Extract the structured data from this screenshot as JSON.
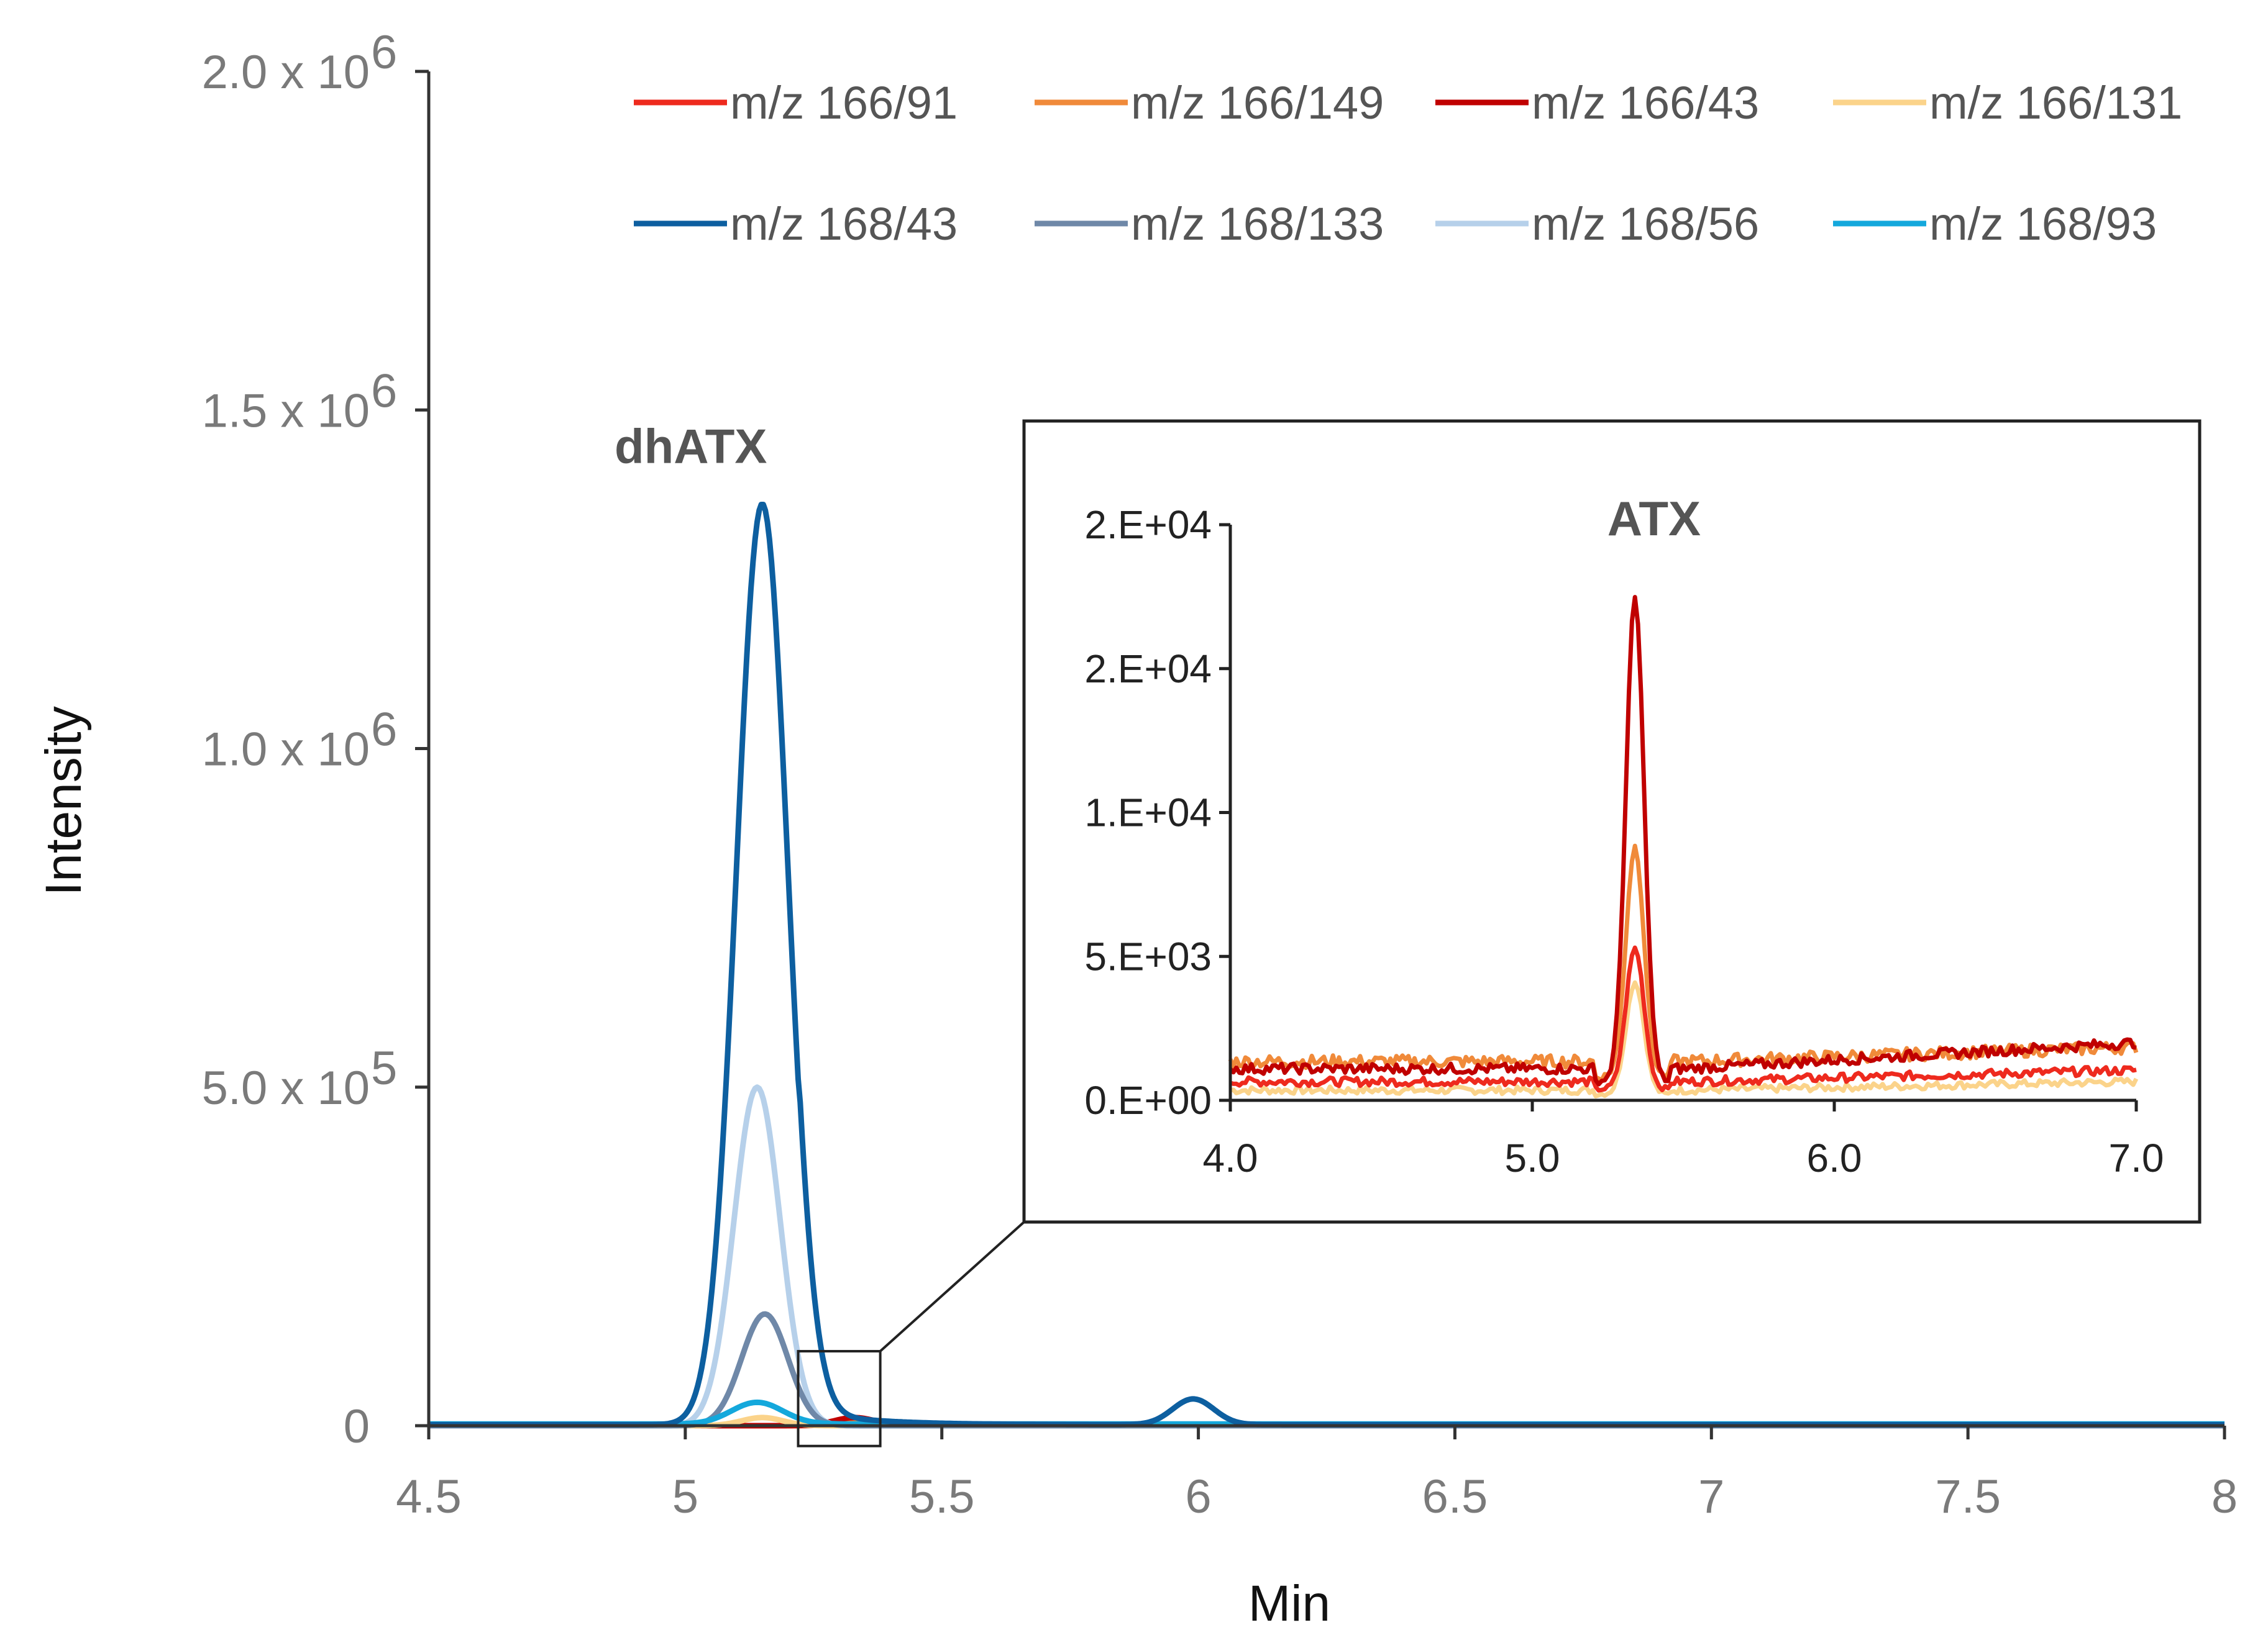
{
  "chart_data": {
    "type": "line",
    "xlabel": "Min",
    "ylabel": "Intensity",
    "xlim": [
      4.5,
      8
    ],
    "ylim": [
      0,
      2000000
    ],
    "x_ticks": [
      "4.5",
      "5",
      "5.5",
      "6",
      "6.5",
      "7",
      "7.5",
      "8"
    ],
    "x_tick_values": [
      4.5,
      5,
      5.5,
      6,
      6.5,
      7,
      7.5,
      8
    ],
    "y_ticks": [
      {
        "value": 0,
        "base": "0",
        "exp": ""
      },
      {
        "value": 500000,
        "base": "5.0 x 10",
        "exp": "5"
      },
      {
        "value": 1000000,
        "base": "1.0 x 10",
        "exp": "6"
      },
      {
        "value": 1500000,
        "base": "1.5 x 10",
        "exp": "6"
      },
      {
        "value": 2000000,
        "base": "2.0 x 10",
        "exp": "6"
      }
    ],
    "annotations": [
      {
        "text": "dhATX",
        "x": 5.15,
        "y": 1440000
      }
    ],
    "zoom_box": {
      "x0": 5.22,
      "x1": 5.38,
      "y0": -30000,
      "y1": 110000
    },
    "series": [
      {
        "name": "m/z 166/91",
        "color": "#ee2a1e",
        "peaks": [
          [
            5.33,
            4000
          ]
        ],
        "baseline": 0,
        "noise": 0
      },
      {
        "name": "m/z 166/149",
        "color": "#f08a3a",
        "peaks": [
          [
            5.33,
            8000
          ]
        ],
        "baseline": 0,
        "noise": 0
      },
      {
        "name": "m/z 166/43",
        "color": "#c00000",
        "peaks": [
          [
            5.33,
            12000
          ]
        ],
        "baseline": 0,
        "noise": 0
      },
      {
        "name": "m/z 166/131",
        "color": "#fbd38a",
        "peaks": [
          [
            5.15,
            12000
          ]
        ],
        "baseline": 0,
        "noise": 0
      },
      {
        "name": "m/z 168/43",
        "color": "#0d5fa0",
        "peaks": [
          [
            5.15,
            1360000,
            0.05
          ],
          [
            5.99,
            38000,
            0.04
          ]
        ],
        "tail": 22000,
        "baseline": 1500,
        "noise": 0
      },
      {
        "name": "m/z 168/133",
        "color": "#6f88a8",
        "peaks": [
          [
            5.155,
            165000,
            0.045
          ]
        ],
        "baseline": 0,
        "noise": 0
      },
      {
        "name": "m/z 168/56",
        "color": "#b6d0ea",
        "peaks": [
          [
            5.14,
            500000,
            0.045
          ]
        ],
        "baseline": 0,
        "noise": 0
      },
      {
        "name": "m/z 168/93",
        "color": "#14a8dc",
        "peaks": [
          [
            5.14,
            32000,
            0.05
          ]
        ],
        "baseline": 2500,
        "noise": 0
      }
    ],
    "inset": {
      "xlim": [
        4.0,
        7.0
      ],
      "ylim": [
        0,
        20000
      ],
      "x_ticks": [
        "4.0",
        "5.0",
        "6.0",
        "7.0"
      ],
      "x_tick_values": [
        4.0,
        5.0,
        6.0,
        7.0
      ],
      "y_ticks": [
        "0.E+00",
        "5.E+03",
        "1.E+04",
        "2.E+04",
        "2.E+04"
      ],
      "y_tick_values": [
        0,
        5000,
        10000,
        15000,
        20000
      ],
      "annotations": [
        {
          "text": "ATX",
          "x": 5.65,
          "y": 16500
        }
      ],
      "series": [
        {
          "name": "m/z 166/43",
          "color": "#c00000",
          "baseline": 1100,
          "noise": 180,
          "drift": 900,
          "peaks": [
            [
              5.34,
              16800,
              0.03
            ]
          ]
        },
        {
          "name": "m/z 166/149",
          "color": "#f08a3a",
          "baseline": 1350,
          "noise": 220,
          "drift": 500,
          "peaks": [
            [
              5.34,
              8000,
              0.03
            ]
          ]
        },
        {
          "name": "m/z 166/91",
          "color": "#ee2a1e",
          "baseline": 650,
          "noise": 150,
          "drift": 400,
          "peaks": [
            [
              5.34,
              4900,
              0.03
            ]
          ]
        },
        {
          "name": "m/z 166/131",
          "color": "#fbd38a",
          "baseline": 350,
          "noise": 130,
          "drift": 300,
          "peaks": [
            [
              5.34,
              3900,
              0.03
            ]
          ]
        }
      ]
    }
  }
}
